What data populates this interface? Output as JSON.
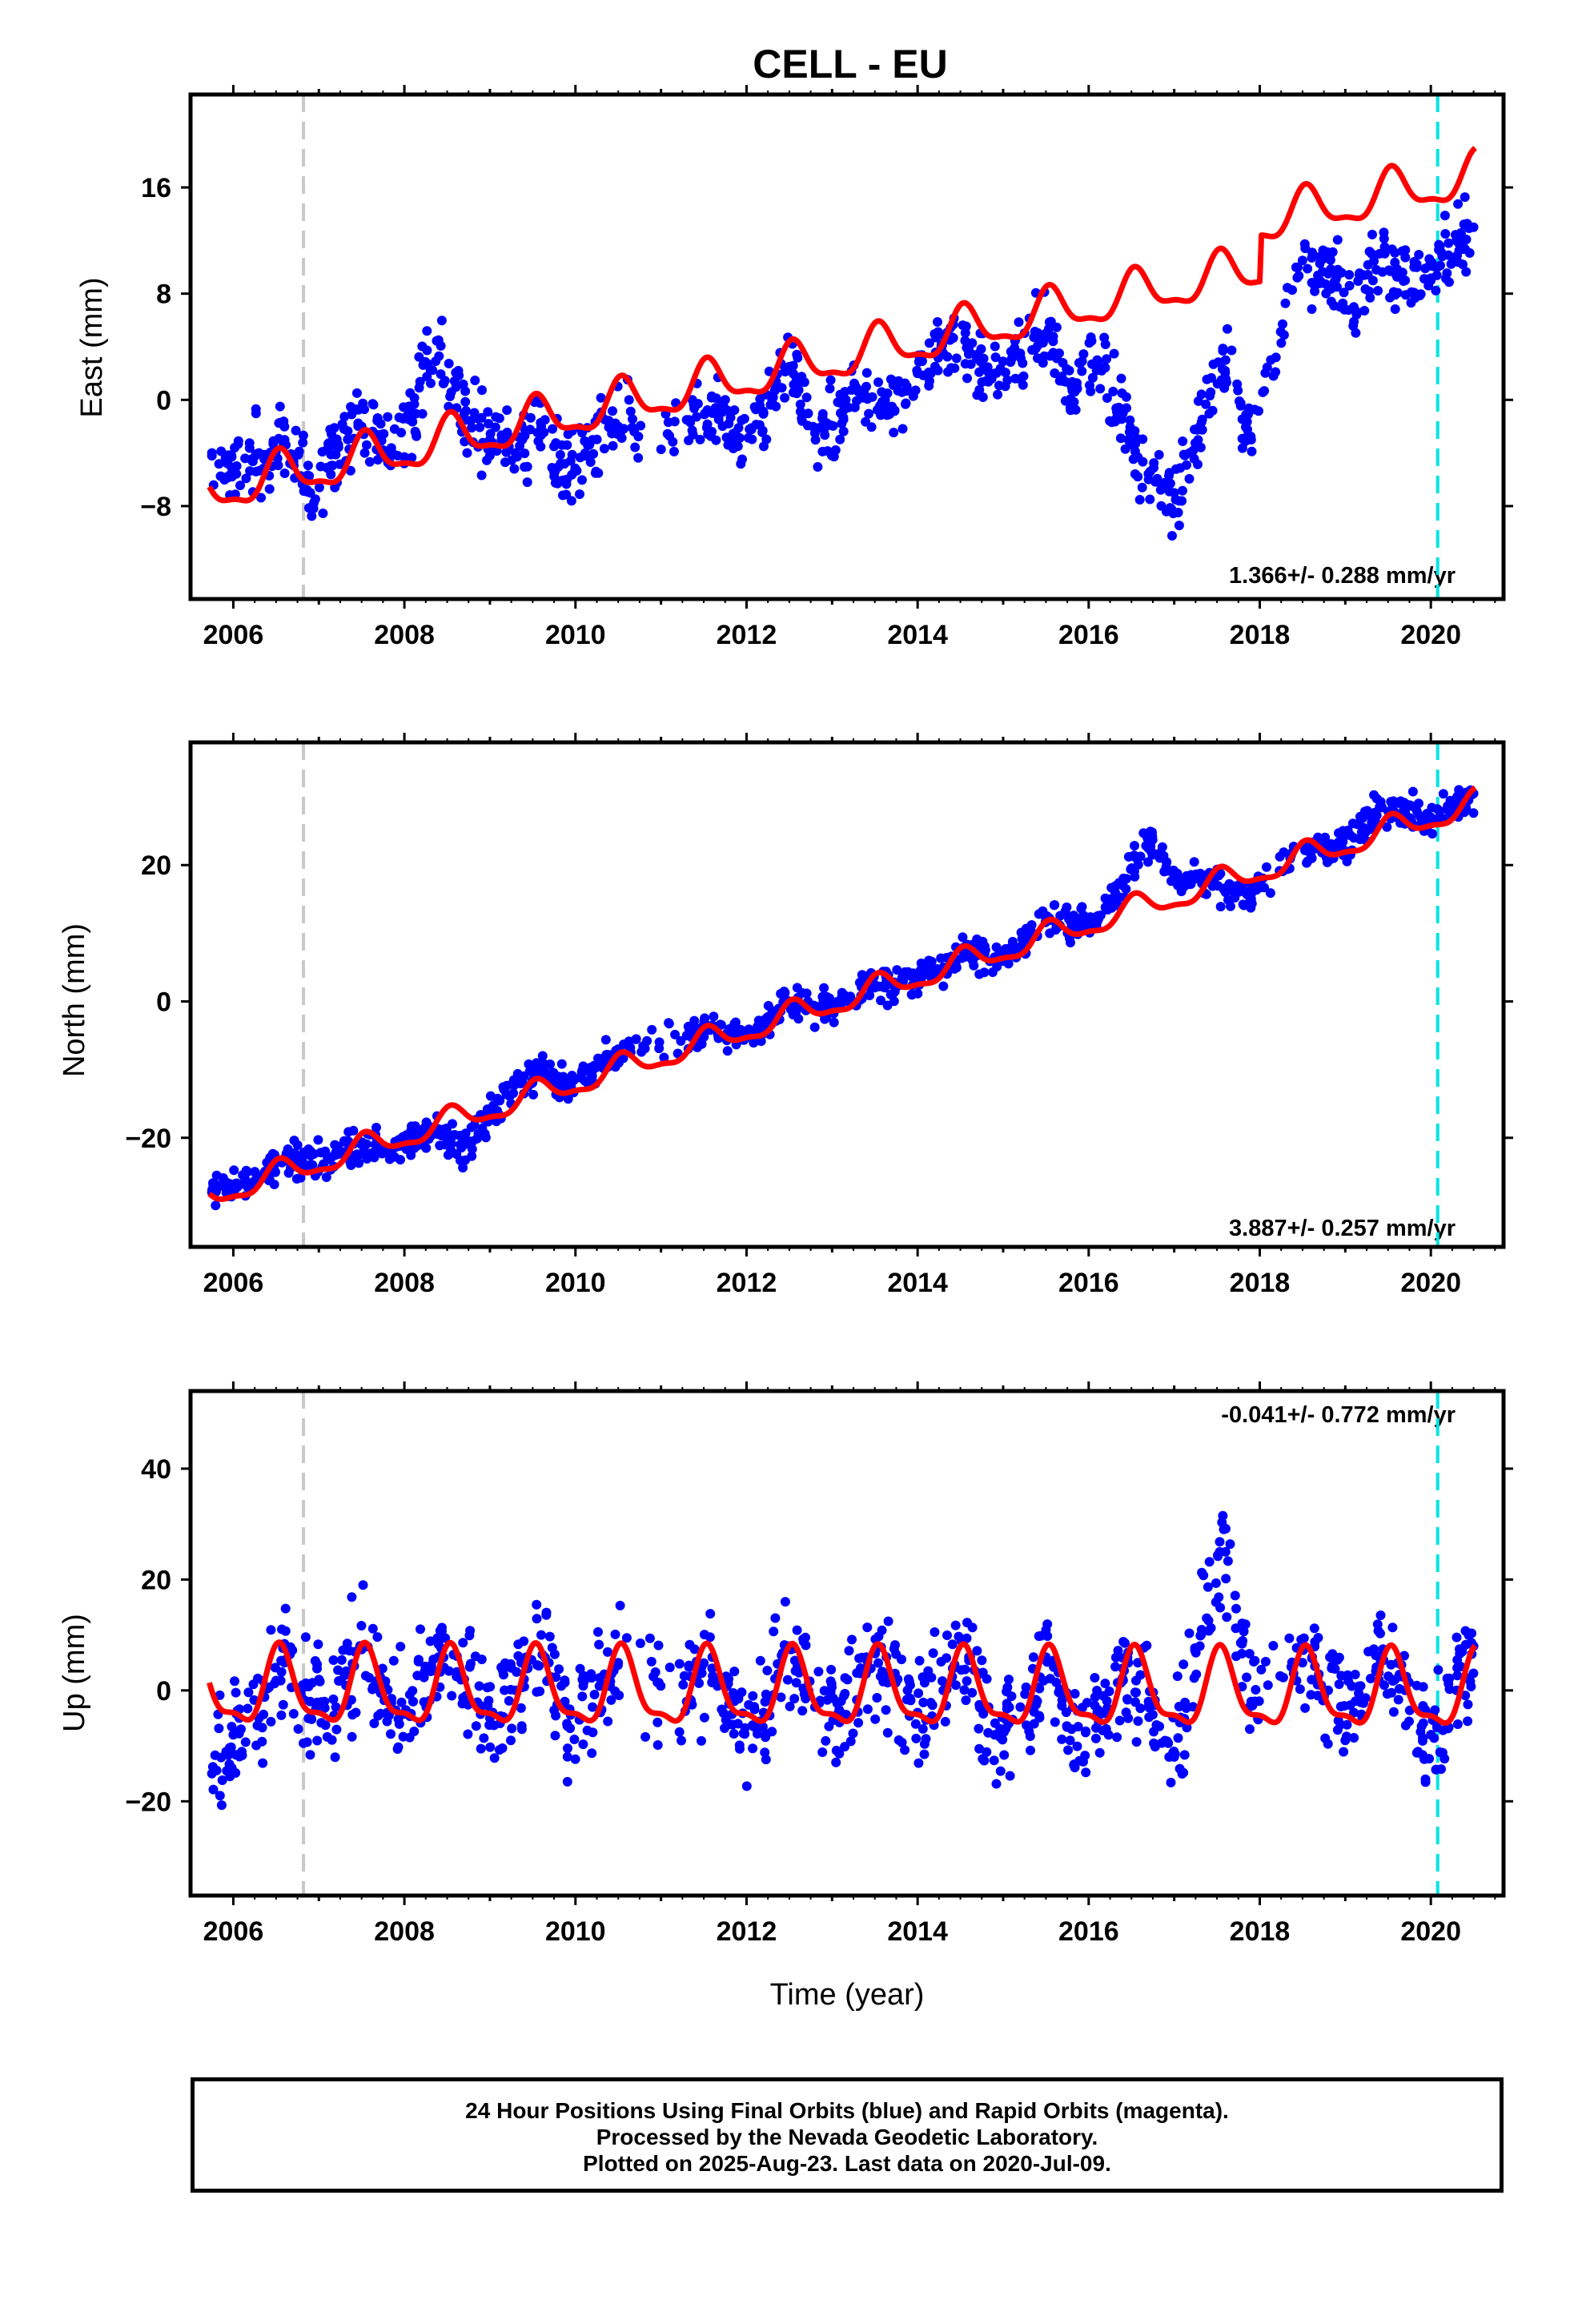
{
  "title": "CELL - EU",
  "footer": {
    "line1": "24 Hour Positions Using Final Orbits (blue) and Rapid Orbits (magenta).",
    "line2": "Processed by the Nevada Geodetic Laboratory.",
    "line3": "Plotted on 2025-Aug-23. Last data on 2020-Jul-09."
  },
  "colors": {
    "data_points": "#0000ff",
    "model_curve": "#ff0000",
    "equipment_change_line": "#c8c8c8",
    "last_data_line": "#00e5e5"
  },
  "chart_data": [
    {
      "type": "scatter",
      "panel": "East",
      "ylabel": "East (mm)",
      "xlabel": "",
      "xlim": [
        2005.5,
        2020.85
      ],
      "ylim": [
        -15,
        23
      ],
      "yticks": [
        -8,
        0,
        8,
        16
      ],
      "xticks": [
        2006,
        2008,
        2010,
        2012,
        2014,
        2016,
        2018,
        2020
      ],
      "rate_label": "1.366+/- 0.288 mm/yr",
      "rate_position": "bottom-right",
      "vertical_lines": [
        2006.82,
        2020.08
      ],
      "model": {
        "rate": 1.366,
        "offset_2006": -6.5,
        "annual_amp": 1.6,
        "step_2018": 3.5
      },
      "series": [
        {
          "name": "",
          "x": [
            2005.75,
            2006.0,
            2006.3,
            2006.6,
            2006.9,
            2007.2,
            2007.5,
            2007.8,
            2008.1,
            2008.4,
            2008.7,
            2009.0,
            2009.3,
            2009.6,
            2009.9,
            2010.2,
            2010.5,
            2011.3,
            2011.6,
            2011.9,
            2012.2,
            2012.5,
            2012.8,
            2013.1,
            2013.4,
            2013.7,
            2014.0,
            2014.3,
            2014.6,
            2014.9,
            2015.2,
            2015.5,
            2015.8,
            2016.1,
            2016.4,
            2016.7,
            2017.0,
            2017.3,
            2017.6,
            2017.9,
            2018.5,
            2018.8,
            2019.1,
            2019.4,
            2019.7,
            2020.0,
            2020.3,
            2020.5
          ],
          "y": [
            -4.0,
            -5.5,
            -4.0,
            -3.0,
            -7.0,
            -3.5,
            -2.0,
            -4.0,
            -1.0,
            4.5,
            -1.0,
            -3.0,
            -4.0,
            -2.0,
            -6.0,
            -3.0,
            -2.0,
            -1.5,
            -1.0,
            -3.5,
            -1.0,
            2.5,
            -2.5,
            -1.0,
            1.0,
            -0.5,
            2.0,
            3.5,
            4.0,
            2.0,
            3.5,
            5.0,
            1.0,
            3.0,
            -1.0,
            -6.0,
            -7.0,
            -2.0,
            3.0,
            -3.0,
            10.5,
            9.5,
            7.0,
            11.0,
            9.0,
            9.0,
            12.0,
            13.0
          ]
        }
      ]
    },
    {
      "type": "scatter",
      "panel": "North",
      "ylabel": "North (mm)",
      "xlabel": "",
      "xlim": [
        2005.5,
        2020.85
      ],
      "ylim": [
        -36,
        38
      ],
      "yticks": [
        -20,
        0,
        20
      ],
      "xticks": [
        2006,
        2008,
        2010,
        2012,
        2014,
        2016,
        2018,
        2020
      ],
      "rate_label": "3.887+/- 0.257 mm/yr",
      "rate_position": "bottom-right",
      "vertical_lines": [
        2006.82,
        2020.08
      ],
      "model": {
        "rate": 3.887,
        "offset_2006": -27.5,
        "annual_amp": 1.8,
        "step_2018": 0
      },
      "series": [
        {
          "name": "",
          "x": [
            2005.75,
            2006.0,
            2006.3,
            2006.6,
            2006.9,
            2007.2,
            2007.5,
            2007.8,
            2008.1,
            2008.4,
            2008.7,
            2009.0,
            2009.3,
            2009.6,
            2009.9,
            2010.2,
            2010.5,
            2011.3,
            2011.6,
            2011.9,
            2012.2,
            2012.5,
            2012.8,
            2013.1,
            2013.4,
            2013.7,
            2014.0,
            2014.3,
            2014.6,
            2014.9,
            2015.2,
            2015.5,
            2015.8,
            2016.1,
            2016.4,
            2016.7,
            2017.0,
            2017.3,
            2017.6,
            2017.9,
            2018.5,
            2018.8,
            2019.1,
            2019.4,
            2019.7,
            2020.0,
            2020.3,
            2020.5
          ],
          "y": [
            -28.0,
            -27.5,
            -26.0,
            -23.0,
            -24.0,
            -22.5,
            -21.0,
            -21.5,
            -20.0,
            -19.5,
            -21.0,
            -17.0,
            -12.0,
            -11.0,
            -12.5,
            -10.0,
            -7.0,
            -5.0,
            -3.5,
            -5.0,
            -3.5,
            0.0,
            -1.0,
            -0.5,
            3.0,
            2.5,
            3.0,
            5.0,
            7.5,
            6.5,
            8.0,
            12.5,
            11.0,
            12.5,
            17.0,
            24.0,
            18.0,
            18.0,
            16.0,
            15.0,
            23.0,
            22.0,
            24.0,
            28.5,
            28.0,
            27.0,
            29.0,
            30.5
          ]
        }
      ]
    },
    {
      "type": "scatter",
      "panel": "Up",
      "ylabel": "Up (mm)",
      "xlabel": "Time (year)",
      "xlim": [
        2005.5,
        2020.85
      ],
      "ylim": [
        -37,
        54
      ],
      "yticks": [
        -20,
        0,
        20,
        40
      ],
      "xticks": [
        2006,
        2008,
        2010,
        2012,
        2014,
        2016,
        2018,
        2020
      ],
      "rate_label": "-0.041+/- 0.772 mm/yr",
      "rate_position": "top-right",
      "vertical_lines": [
        2006.82,
        2020.08
      ],
      "model": {
        "rate": -0.041,
        "offset_2006": 0,
        "annual_amp": 6.5,
        "step_2018": 0
      },
      "series": [
        {
          "name": "",
          "x": [
            2005.75,
            2006.0,
            2006.3,
            2006.6,
            2006.9,
            2007.2,
            2007.5,
            2007.8,
            2008.1,
            2008.4,
            2008.7,
            2009.0,
            2009.3,
            2009.6,
            2009.9,
            2010.2,
            2010.5,
            2011.3,
            2011.6,
            2011.9,
            2012.2,
            2012.5,
            2012.8,
            2013.1,
            2013.4,
            2013.7,
            2014.0,
            2014.3,
            2014.6,
            2014.9,
            2015.2,
            2015.5,
            2015.8,
            2016.1,
            2016.4,
            2016.7,
            2017.0,
            2017.3,
            2017.6,
            2017.9,
            2018.5,
            2018.8,
            2019.1,
            2019.4,
            2019.7,
            2020.0,
            2020.3,
            2020.5
          ],
          "y": [
            -15.0,
            -8.0,
            -5.0,
            5.0,
            -2.0,
            -3.0,
            8.0,
            -4.0,
            -2.0,
            6.0,
            2.0,
            -5.0,
            0.0,
            10.0,
            -6.0,
            -3.0,
            5.0,
            -2.0,
            6.0,
            -6.0,
            -4.0,
            8.0,
            -3.0,
            -4.0,
            6.0,
            2.0,
            -4.0,
            0.0,
            6.0,
            -8.0,
            -3.0,
            6.0,
            -7.0,
            -4.0,
            4.0,
            -2.0,
            -12.0,
            8.0,
            25.0,
            -2.0,
            5.0,
            0.0,
            -4.0,
            6.0,
            0.0,
            -8.0,
            0.0,
            8.0
          ]
        }
      ]
    }
  ]
}
